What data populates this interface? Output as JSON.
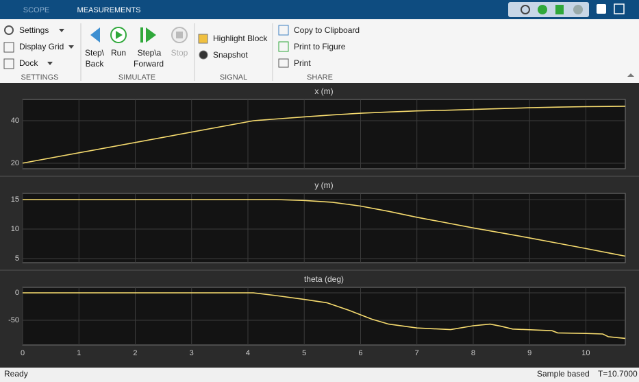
{
  "tabs": [
    "SCOPE",
    "MEASUREMENTS"
  ],
  "toolstrip": {
    "groups": [
      {
        "label": "SETTINGS",
        "items": [
          "Settings",
          "Display Grid",
          "Dock"
        ]
      },
      {
        "label": "SIMULATE",
        "items": [
          [
            "Step\\",
            "Back"
          ],
          [
            "Run"
          ],
          [
            "Step\\a",
            "Forward"
          ],
          [
            "Stop"
          ]
        ]
      },
      {
        "label": "SIGNAL",
        "items": [
          "Highlight Block",
          "Snapshot"
        ]
      },
      {
        "label": "SHARE",
        "items": [
          "Copy to Clipboard",
          "Print to Figure",
          "Print"
        ]
      }
    ]
  },
  "status": {
    "left": "Ready",
    "mode": "Sample based",
    "time": "T=10.7000"
  },
  "chart_data": [
    {
      "type": "line",
      "title": "x (m)",
      "color": "#f7dc6f",
      "grid": true,
      "show_xtick_labels": false,
      "x": [
        0,
        4.1,
        4.5,
        5,
        5.5,
        6,
        6.5,
        7,
        7.5,
        8,
        8.5,
        9,
        9.5,
        10,
        10.7
      ],
      "values": [
        20,
        40,
        40.8,
        41.8,
        42.7,
        43.5,
        44.1,
        44.6,
        44.9,
        45.3,
        45.7,
        46.1,
        46.4,
        46.6,
        46.8
      ],
      "xlim": [
        0,
        10.7
      ],
      "xticks": [
        0,
        1,
        2,
        3,
        4,
        5,
        6,
        7,
        8,
        9,
        10
      ],
      "ylim": [
        17.4,
        50
      ],
      "yticks": [
        20,
        40
      ]
    },
    {
      "type": "line",
      "title": "y (m)",
      "color": "#f7dc6f",
      "grid": true,
      "show_xtick_labels": false,
      "x": [
        0,
        4.5,
        5,
        5.5,
        6,
        6.5,
        7,
        7.5,
        8,
        8.5,
        9,
        9.5,
        10,
        10.7
      ],
      "values": [
        15,
        15,
        14.85,
        14.55,
        13.9,
        13.0,
        12.0,
        11.1,
        10.2,
        9.35,
        8.5,
        7.6,
        6.7,
        5.4
      ],
      "xlim": [
        0,
        10.7
      ],
      "xticks": [
        0,
        1,
        2,
        3,
        4,
        5,
        6,
        7,
        8,
        9,
        10
      ],
      "ylim": [
        4.3,
        16.05
      ],
      "yticks": [
        5,
        10,
        15
      ]
    },
    {
      "type": "line",
      "title": "theta (deg)",
      "color": "#f7dc6f",
      "grid": true,
      "show_xtick_labels": true,
      "x": [
        0,
        4.1,
        4.5,
        5,
        5.4,
        5.8,
        6.2,
        6.5,
        7,
        7.6,
        8,
        8.3,
        8.5,
        8.7,
        9.4,
        9.5,
        10,
        10.3,
        10.4,
        10.7
      ],
      "values": [
        0,
        0,
        -5,
        -12,
        -18,
        -32,
        -48,
        -57,
        -64,
        -67,
        -60,
        -57,
        -61,
        -66,
        -69,
        -73,
        -74,
        -75,
        -80,
        -83
      ],
      "xlim": [
        0,
        10.7
      ],
      "xticks": [
        0,
        1,
        2,
        3,
        4,
        5,
        6,
        7,
        8,
        9,
        10
      ],
      "ylim": [
        -95,
        10
      ],
      "yticks": [
        -50,
        0
      ]
    }
  ]
}
